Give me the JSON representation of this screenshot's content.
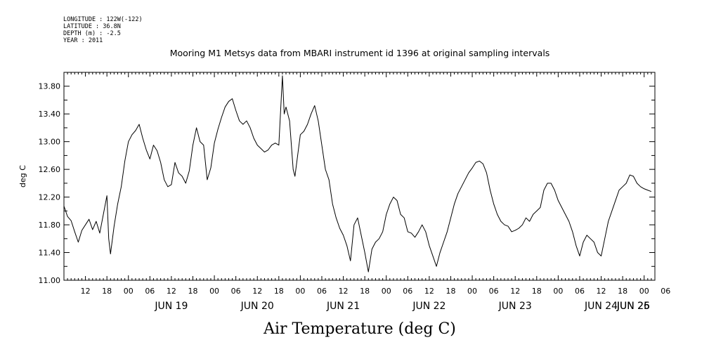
{
  "meta": {
    "longitude": "LONGITUDE : 122W(-122)",
    "latitude": "LATITUDE : 36.8N",
    "depth": "DEPTH (m) : -2.5",
    "year": "YEAR : 2011"
  },
  "chart_data": {
    "type": "line",
    "title": "Mooring M1 Metsys data from MBARI instrument id 1396 at original sampling intervals",
    "xlabel": "Air Temperature (deg C)",
    "ylabel": "deg C",
    "ylim": [
      11.0,
      14.0
    ],
    "yticks": [
      "11.00",
      "11.40",
      "11.80",
      "12.20",
      "12.60",
      "13.00",
      "13.40",
      "13.80"
    ],
    "xlim_hours": [
      0,
      165
    ],
    "hour_tick_labels": [
      "12",
      "18",
      "00",
      "06",
      "12",
      "18",
      "00",
      "06",
      "12",
      "18",
      "00",
      "06",
      "12",
      "18",
      "00",
      "06",
      "12",
      "18",
      "00",
      "06",
      "12",
      "18",
      "00",
      "06",
      "12",
      "18",
      "00",
      "06"
    ],
    "day_labels": [
      "JUN 19",
      "JUN 20",
      "JUN 21",
      "JUN 22",
      "JUN 23",
      "JUN 24",
      "JUN 25",
      "JUN 26"
    ],
    "x_unit": "hours after 2011-06-18 06:00",
    "series": [
      {
        "values": [
          [
            0,
            12.07
          ],
          [
            1,
            11.92
          ],
          [
            2,
            11.86
          ],
          [
            3,
            11.7
          ],
          [
            4,
            11.55
          ],
          [
            5,
            11.72
          ],
          [
            6,
            11.8
          ],
          [
            7,
            11.88
          ],
          [
            8,
            11.73
          ],
          [
            9,
            11.85
          ],
          [
            10,
            11.68
          ],
          [
            11,
            11.95
          ],
          [
            12,
            12.22
          ],
          [
            12.5,
            11.6
          ],
          [
            13,
            11.38
          ],
          [
            14,
            11.78
          ],
          [
            15,
            12.1
          ],
          [
            16,
            12.35
          ],
          [
            17,
            12.72
          ],
          [
            18,
            13.0
          ],
          [
            19,
            13.1
          ],
          [
            20,
            13.16
          ],
          [
            21,
            13.25
          ],
          [
            22,
            13.05
          ],
          [
            23,
            12.88
          ],
          [
            24,
            12.75
          ],
          [
            25,
            12.95
          ],
          [
            26,
            12.87
          ],
          [
            27,
            12.7
          ],
          [
            28,
            12.45
          ],
          [
            29,
            12.35
          ],
          [
            30,
            12.38
          ],
          [
            31,
            12.7
          ],
          [
            32,
            12.55
          ],
          [
            33,
            12.5
          ],
          [
            34,
            12.4
          ],
          [
            35,
            12.58
          ],
          [
            36,
            12.95
          ],
          [
            37,
            13.2
          ],
          [
            38,
            13.0
          ],
          [
            39,
            12.95
          ],
          [
            40,
            12.45
          ],
          [
            41,
            12.62
          ],
          [
            42,
            12.98
          ],
          [
            43,
            13.18
          ],
          [
            44,
            13.35
          ],
          [
            45,
            13.5
          ],
          [
            46,
            13.58
          ],
          [
            47,
            13.62
          ],
          [
            48,
            13.45
          ],
          [
            49,
            13.3
          ],
          [
            50,
            13.25
          ],
          [
            51,
            13.3
          ],
          [
            52,
            13.2
          ],
          [
            53,
            13.05
          ],
          [
            54,
            12.95
          ],
          [
            55,
            12.9
          ],
          [
            56,
            12.85
          ],
          [
            57,
            12.88
          ],
          [
            58,
            12.95
          ],
          [
            59,
            12.98
          ],
          [
            60,
            12.95
          ],
          [
            61,
            13.95
          ],
          [
            61.5,
            13.4
          ],
          [
            62,
            13.5
          ],
          [
            63,
            13.3
          ],
          [
            64,
            12.6
          ],
          [
            64.5,
            12.5
          ],
          [
            65,
            12.7
          ],
          [
            66,
            13.1
          ],
          [
            67,
            13.15
          ],
          [
            68,
            13.25
          ],
          [
            69,
            13.4
          ],
          [
            70,
            13.52
          ],
          [
            71,
            13.3
          ],
          [
            72,
            12.95
          ],
          [
            73,
            12.6
          ],
          [
            74,
            12.45
          ],
          [
            75,
            12.1
          ],
          [
            76,
            11.9
          ],
          [
            77,
            11.75
          ],
          [
            78,
            11.65
          ],
          [
            79,
            11.5
          ],
          [
            80,
            11.28
          ],
          [
            81,
            11.8
          ],
          [
            82,
            11.9
          ],
          [
            83,
            11.65
          ],
          [
            84,
            11.4
          ],
          [
            85,
            11.12
          ],
          [
            86,
            11.45
          ],
          [
            87,
            11.55
          ],
          [
            88,
            11.6
          ],
          [
            89,
            11.7
          ],
          [
            90,
            11.95
          ],
          [
            91,
            12.1
          ],
          [
            92,
            12.2
          ],
          [
            93,
            12.15
          ],
          [
            94,
            11.95
          ],
          [
            95,
            11.9
          ],
          [
            96,
            11.7
          ],
          [
            97,
            11.68
          ],
          [
            98,
            11.62
          ],
          [
            99,
            11.7
          ],
          [
            100,
            11.8
          ],
          [
            101,
            11.7
          ],
          [
            102,
            11.5
          ],
          [
            103,
            11.35
          ],
          [
            104,
            11.2
          ],
          [
            105,
            11.4
          ],
          [
            106,
            11.55
          ],
          [
            107,
            11.7
          ],
          [
            108,
            11.9
          ],
          [
            109,
            12.1
          ],
          [
            110,
            12.25
          ],
          [
            111,
            12.35
          ],
          [
            112,
            12.45
          ],
          [
            113,
            12.55
          ],
          [
            114,
            12.62
          ],
          [
            115,
            12.7
          ],
          [
            116,
            12.72
          ],
          [
            117,
            12.68
          ],
          [
            118,
            12.55
          ],
          [
            119,
            12.3
          ],
          [
            120,
            12.1
          ],
          [
            121,
            11.95
          ],
          [
            122,
            11.85
          ],
          [
            123,
            11.8
          ],
          [
            124,
            11.78
          ],
          [
            125,
            11.7
          ],
          [
            126,
            11.72
          ],
          [
            127,
            11.75
          ],
          [
            128,
            11.8
          ],
          [
            129,
            11.9
          ],
          [
            130,
            11.85
          ],
          [
            131,
            11.95
          ],
          [
            132,
            12.0
          ],
          [
            133,
            12.05
          ],
          [
            134,
            12.3
          ],
          [
            135,
            12.4
          ],
          [
            136,
            12.4
          ],
          [
            137,
            12.3
          ],
          [
            138,
            12.15
          ],
          [
            139,
            12.05
          ],
          [
            140,
            11.95
          ],
          [
            141,
            11.85
          ],
          [
            142,
            11.7
          ],
          [
            143,
            11.5
          ],
          [
            144,
            11.35
          ],
          [
            145,
            11.55
          ],
          [
            146,
            11.65
          ],
          [
            147,
            11.6
          ],
          [
            148,
            11.55
          ],
          [
            149,
            11.4
          ],
          [
            150,
            11.35
          ],
          [
            151,
            11.6
          ],
          [
            152,
            11.85
          ],
          [
            153,
            12.0
          ],
          [
            154,
            12.15
          ],
          [
            155,
            12.3
          ],
          [
            156,
            12.35
          ],
          [
            157,
            12.4
          ],
          [
            158,
            12.52
          ],
          [
            159,
            12.5
          ],
          [
            160,
            12.4
          ],
          [
            161,
            12.35
          ],
          [
            162,
            12.32
          ],
          [
            163,
            12.3
          ],
          [
            164,
            12.28
          ]
        ]
      }
    ]
  }
}
